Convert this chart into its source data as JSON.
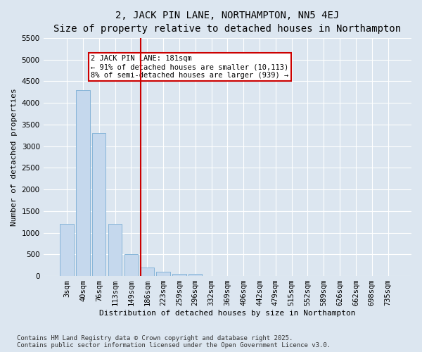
{
  "title_line1": "2, JACK PIN LANE, NORTHAMPTON, NN5 4EJ",
  "title_line2": "Size of property relative to detached houses in Northampton",
  "xlabel": "Distribution of detached houses by size in Northampton",
  "ylabel": "Number of detached properties",
  "categories": [
    "3sqm",
    "40sqm",
    "76sqm",
    "113sqm",
    "149sqm",
    "186sqm",
    "223sqm",
    "259sqm",
    "296sqm",
    "332sqm",
    "369sqm",
    "406sqm",
    "442sqm",
    "479sqm",
    "515sqm",
    "552sqm",
    "589sqm",
    "626sqm",
    "662sqm",
    "698sqm",
    "735sqm"
  ],
  "values": [
    1200,
    4300,
    3300,
    1200,
    500,
    200,
    100,
    55,
    50,
    0,
    0,
    0,
    0,
    0,
    0,
    0,
    0,
    0,
    0,
    0,
    0
  ],
  "bar_color": "#c5d8ed",
  "bar_edge_color": "#7aadd4",
  "red_line_index": 5,
  "red_line_color": "#cc0000",
  "ylim": [
    0,
    5500
  ],
  "yticks": [
    0,
    500,
    1000,
    1500,
    2000,
    2500,
    3000,
    3500,
    4000,
    4500,
    5000,
    5500
  ],
  "annotation_text": "2 JACK PIN LANE: 181sqm\n← 91% of detached houses are smaller (10,113)\n8% of semi-detached houses are larger (939) →",
  "annotation_box_color": "#ffffff",
  "annotation_box_edge_color": "#cc0000",
  "footer_line1": "Contains HM Land Registry data © Crown copyright and database right 2025.",
  "footer_line2": "Contains public sector information licensed under the Open Government Licence v3.0.",
  "bg_color": "#dce6f0",
  "plot_bg_color": "#dce6f0",
  "grid_color": "#ffffff",
  "title_fontsize": 10,
  "subtitle_fontsize": 9,
  "axis_label_fontsize": 8,
  "tick_fontsize": 7.5,
  "footer_fontsize": 6.5,
  "annotation_fontsize": 7.5
}
